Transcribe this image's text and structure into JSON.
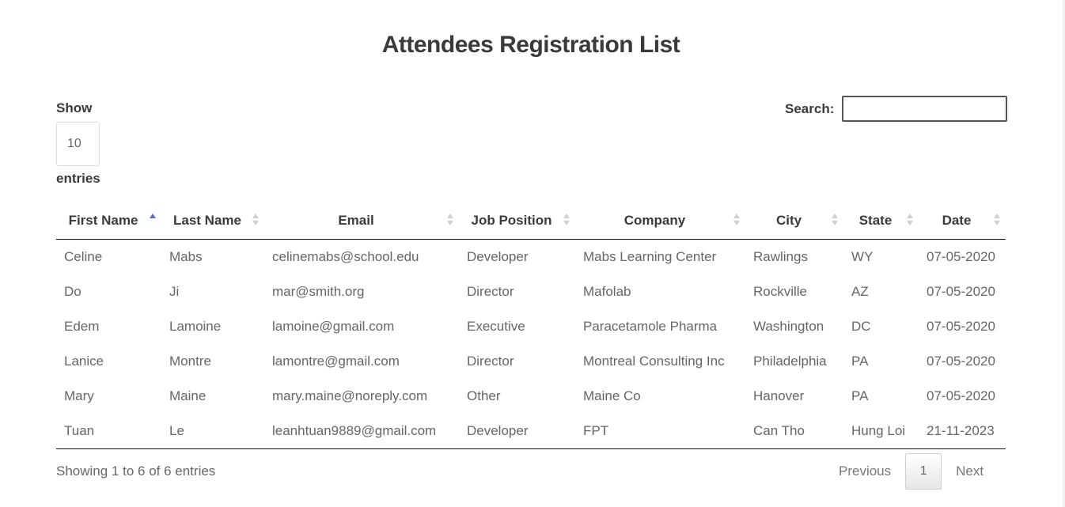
{
  "page": {
    "title": "Attendees Registration List"
  },
  "length_control": {
    "show_label": "Show",
    "selected": "10",
    "entries_label": "entries"
  },
  "search": {
    "label": "Search:",
    "value": "",
    "placeholder": ""
  },
  "table": {
    "columns": [
      "First Name",
      "Last Name",
      "Email",
      "Job Position",
      "Company",
      "City",
      "State",
      "Date"
    ],
    "sorted_column": "First Name",
    "sort_direction": "ascending",
    "rows": [
      [
        "Celine",
        "Mabs",
        "celinemabs@school.edu",
        "Developer",
        "Mabs Learning Center",
        "Rawlings",
        "WY",
        "07-05-2020"
      ],
      [
        "Do",
        "Ji",
        "mar@smith.org",
        "Director",
        "Mafolab",
        "Rockville",
        "AZ",
        "07-05-2020"
      ],
      [
        "Edem",
        "Lamoine",
        "lamoine@gmail.com",
        "Executive",
        "Paracetamole Pharma",
        "Washington",
        "DC",
        "07-05-2020"
      ],
      [
        "Lanice",
        "Montre",
        "lamontre@gmail.com",
        "Director",
        "Montreal Consulting Inc",
        "Philadelphia",
        "PA",
        "07-05-2020"
      ],
      [
        "Mary",
        "Maine",
        "mary.maine@noreply.com",
        "Other",
        "Maine Co",
        "Hanover",
        "PA",
        "07-05-2020"
      ],
      [
        "Tuan",
        "Le",
        "leanhtuan9889@gmail.com",
        "Developer",
        "FPT",
        "Can Tho",
        "Hung Loi",
        "21-11-2023"
      ]
    ]
  },
  "footer": {
    "info": "Showing 1 to 6 of 6 entries",
    "pagination": {
      "previous": "Previous",
      "current": "1",
      "next": "Next"
    }
  },
  "colors": {
    "sort_active": "#5a67c8",
    "sort_inactive": "#d0d0d0",
    "text_dark": "#3a3a3a",
    "text_muted": "#666666"
  }
}
